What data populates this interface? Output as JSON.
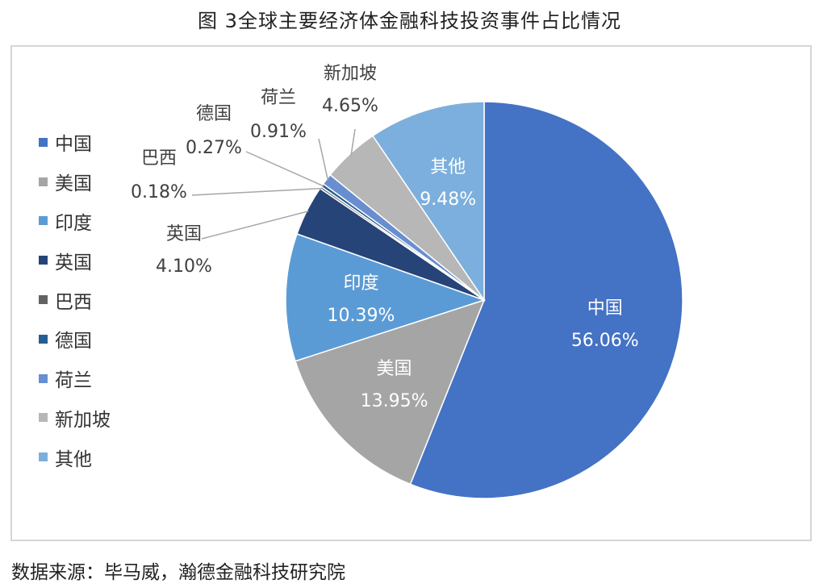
{
  "figure": {
    "title": "图 3全球主要经济体金融科技投资事件占比情况",
    "source": "数据来源：毕马威，瀚德金融科技研究院"
  },
  "chart_data": {
    "type": "pie",
    "title": "",
    "legend_position": "left",
    "slices": [
      {
        "name": "中国",
        "value": 56.06,
        "label": "56.06%",
        "color": "#4472C4",
        "label_inside": true
      },
      {
        "name": "美国",
        "value": 13.95,
        "label": "13.95%",
        "color": "#A5A5A5",
        "label_inside": true
      },
      {
        "name": "印度",
        "value": 10.39,
        "label": "10.39%",
        "color": "#5B9BD5",
        "label_inside": true
      },
      {
        "name": "英国",
        "value": 4.1,
        "label": "4.10%",
        "color": "#264478",
        "label_inside": false
      },
      {
        "name": "巴西",
        "value": 0.18,
        "label": "0.18%",
        "color": "#636363",
        "label_inside": false
      },
      {
        "name": "德国",
        "value": 0.27,
        "label": "0.27%",
        "color": "#255E91",
        "label_inside": false
      },
      {
        "name": "荷兰",
        "value": 0.91,
        "label": "0.91%",
        "color": "#698ED0",
        "label_inside": false
      },
      {
        "name": "新加坡",
        "value": 4.65,
        "label": "4.65%",
        "color": "#B7B7B7",
        "label_inside": false
      },
      {
        "name": "其他",
        "value": 9.48,
        "label": "9.48%",
        "color": "#7CAFDD",
        "label_inside": true
      }
    ]
  }
}
